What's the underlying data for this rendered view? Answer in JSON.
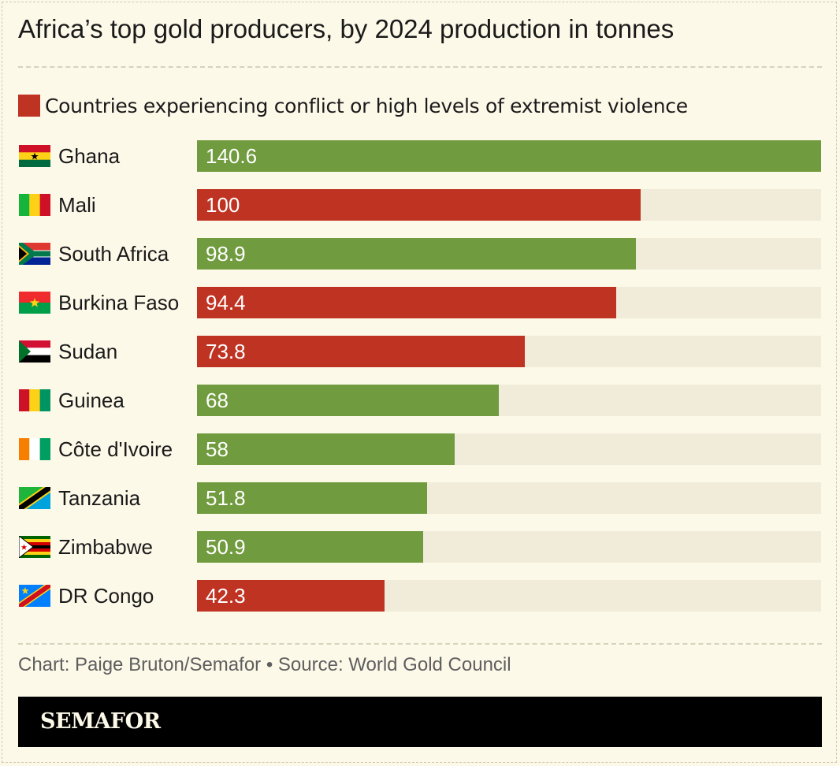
{
  "title": "Africa’s top gold producers, by 2024 production in tonnes",
  "legend": {
    "label": "Countries experiencing conflict or high levels of extremist violence",
    "color": "#bf3323"
  },
  "colors": {
    "normal": "#709b3e",
    "conflict": "#bf3323",
    "track": "#f1ecd9"
  },
  "chart_data": {
    "type": "bar",
    "orientation": "horizontal",
    "title": "Africa’s top gold producers, by 2024 production in tonnes",
    "categories": [
      "Ghana",
      "Mali",
      "South Africa",
      "Burkina Faso",
      "Sudan",
      "Guinea",
      "Côte d'Ivoire",
      "Tanzania",
      "Zimbabwe",
      "DR Congo"
    ],
    "values": [
      140.6,
      100,
      98.9,
      94.4,
      73.8,
      68,
      58,
      51.8,
      50.9,
      42.3
    ],
    "value_labels": [
      "140.6",
      "100",
      "98.9",
      "94.4",
      "73.8",
      "68",
      "58",
      "51.8",
      "50.9",
      "42.3"
    ],
    "conflict": [
      false,
      true,
      false,
      true,
      true,
      false,
      false,
      false,
      false,
      true
    ],
    "flags": [
      "ghana-flag",
      "mali-flag",
      "south-africa-flag",
      "burkina-faso-flag",
      "sudan-flag",
      "guinea-flag",
      "cote-divoire-flag",
      "tanzania-flag",
      "zimbabwe-flag",
      "dr-congo-flag"
    ],
    "xlim": [
      0,
      140.6
    ],
    "grid": false,
    "legend_position": "top-left"
  },
  "credit": "Chart: Paige Bruton/Semafor • Source: World Gold Council",
  "footer": {
    "logo": "SEMAFOR"
  }
}
